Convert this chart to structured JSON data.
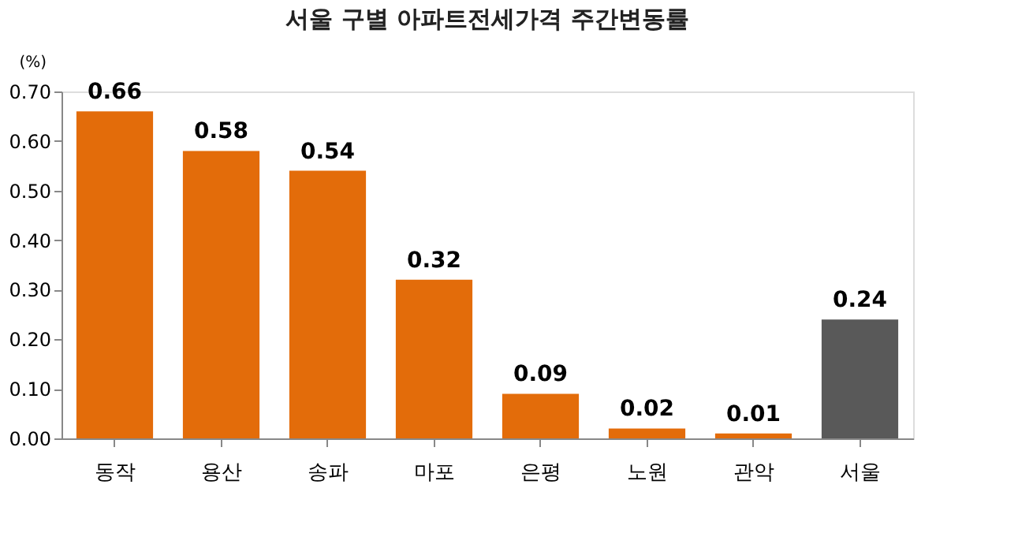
{
  "chart_data": {
    "type": "bar",
    "title": "서울 구별 아파트전세가격 주간변동률",
    "ylabel": "(%)",
    "categories": [
      "동작",
      "용산",
      "송파",
      "마포",
      "은평",
      "노원",
      "관악",
      "서울"
    ],
    "values": [
      0.66,
      0.58,
      0.54,
      0.32,
      0.09,
      0.02,
      0.01,
      0.24
    ],
    "colors": [
      "#e36c0a",
      "#e36c0a",
      "#e36c0a",
      "#e36c0a",
      "#e36c0a",
      "#e36c0a",
      "#e36c0a",
      "#595959"
    ],
    "ylim": [
      0,
      0.7
    ],
    "yticks": [
      {
        "value": 0,
        "label": "0.00"
      },
      {
        "value": 0.1,
        "label": "0.10"
      },
      {
        "value": 0.2,
        "label": "0.20"
      },
      {
        "value": 0.3,
        "label": "0.30"
      },
      {
        "value": 0.4,
        "label": "0.40"
      },
      {
        "value": 0.5,
        "label": "0.50"
      },
      {
        "value": 0.6,
        "label": "0.60"
      },
      {
        "value": 0.7,
        "label": "0.70"
      }
    ],
    "data_labels": true,
    "grid": false
  }
}
